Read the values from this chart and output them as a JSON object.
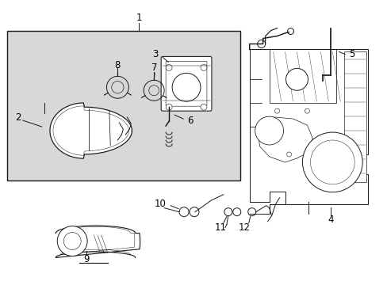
{
  "background_color": "#ffffff",
  "line_color": "#1a1a1a",
  "gray_fill": "#d8d8d8",
  "font_size": 8,
  "label_font_size": 8.5
}
